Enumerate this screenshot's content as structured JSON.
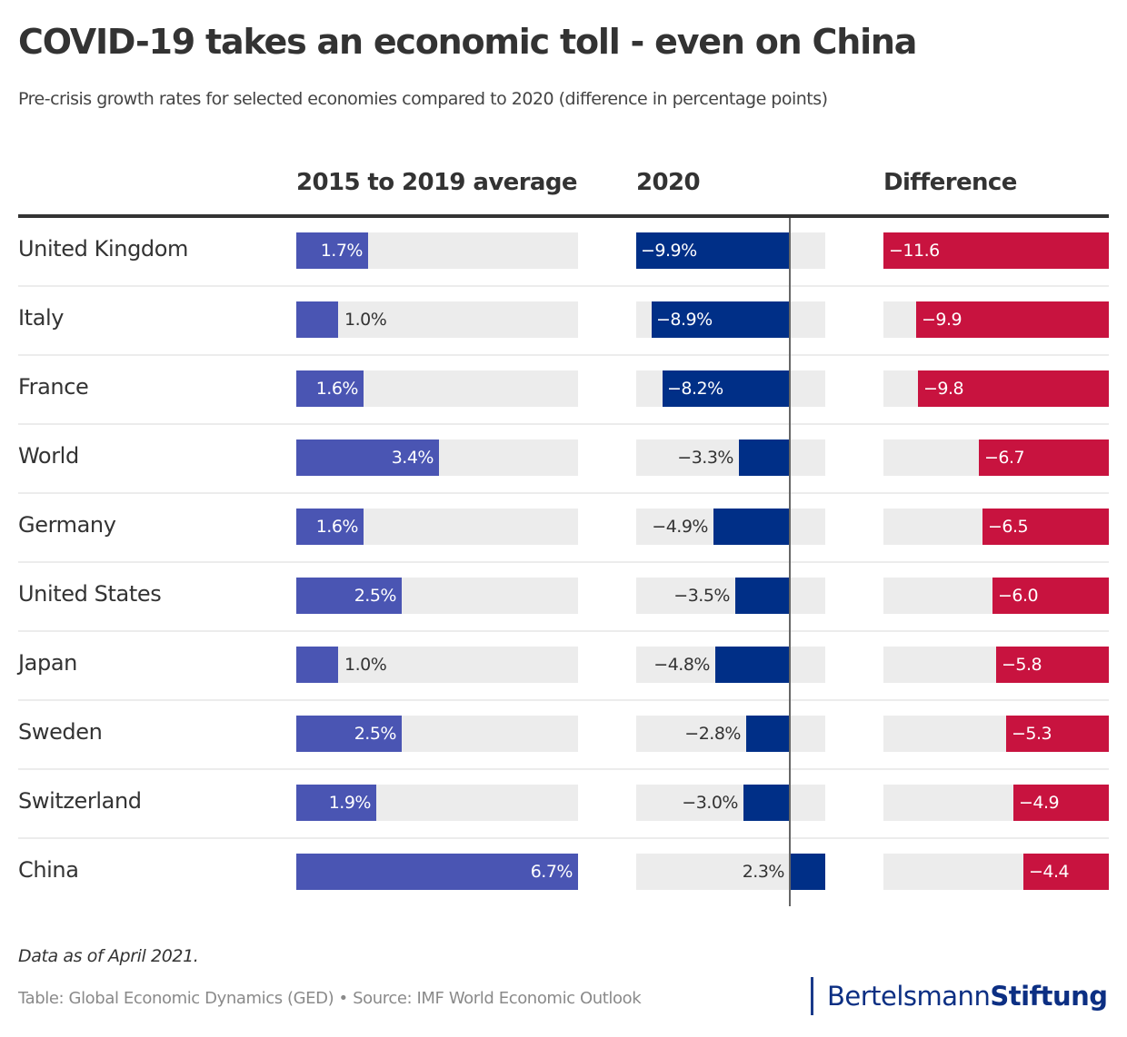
{
  "title": "COVID-19 takes an economic toll - even on China",
  "subtitle": "Pre-crisis growth rates for selected economies compared to 2020 (difference in percentage points)",
  "note": "Data as of April 2021.",
  "source": "Table: Global Economic Dynamics (GED) • Source: IMF World Economic Outlook",
  "logo": {
    "part1": "Bertelsmann",
    "part2": "Stiftung"
  },
  "colors": {
    "avg_bar": "#4a55b3",
    "y2020_bar": "#002f87",
    "diff_bar": "#c8133f",
    "bar_bg": "#ececec"
  },
  "chart_data": {
    "type": "table",
    "title": "COVID-19 takes an economic toll - even on China",
    "subtitle": "Pre-crisis growth rates for selected economies compared to 2020 (difference in percentage points)",
    "columns": [
      "",
      "2015 to 2019 average",
      "2020",
      "Difference"
    ],
    "categories": [
      "United Kingdom",
      "Italy",
      "France",
      "World",
      "Germany",
      "United States",
      "Japan",
      "Sweden",
      "Switzerland",
      "China"
    ],
    "series": [
      {
        "name": "2015 to 2019 average",
        "unit": "%",
        "values": [
          1.7,
          1.0,
          1.6,
          3.4,
          1.6,
          2.5,
          1.0,
          2.5,
          1.9,
          6.7
        ],
        "labels": [
          "1.7%",
          "1.0%",
          "1.6%",
          "3.4%",
          "1.6%",
          "2.5%",
          "1.0%",
          "2.5%",
          "1.9%",
          "6.7%"
        ],
        "range": [
          0,
          6.7
        ]
      },
      {
        "name": "2020",
        "unit": "%",
        "values": [
          -9.9,
          -8.9,
          -8.2,
          -3.3,
          -4.9,
          -3.5,
          -4.8,
          -2.8,
          -3.0,
          2.3
        ],
        "labels": [
          "−9.9%",
          "−8.9%",
          "−8.2%",
          "−3.3%",
          "−4.9%",
          "−3.5%",
          "−4.8%",
          "−2.8%",
          "−3.0%",
          "2.3%"
        ],
        "range": [
          -9.9,
          2.3
        ]
      },
      {
        "name": "Difference",
        "unit": "pp",
        "values": [
          -11.6,
          -9.9,
          -9.8,
          -6.7,
          -6.5,
          -6.0,
          -5.8,
          -5.3,
          -4.9,
          -4.4
        ],
        "labels": [
          "−11.6",
          "−9.9",
          "−9.8",
          "−6.7",
          "−6.5",
          "−6.0",
          "−5.8",
          "−5.3",
          "−4.9",
          "−4.4"
        ],
        "range": [
          -11.6,
          0
        ]
      }
    ]
  }
}
